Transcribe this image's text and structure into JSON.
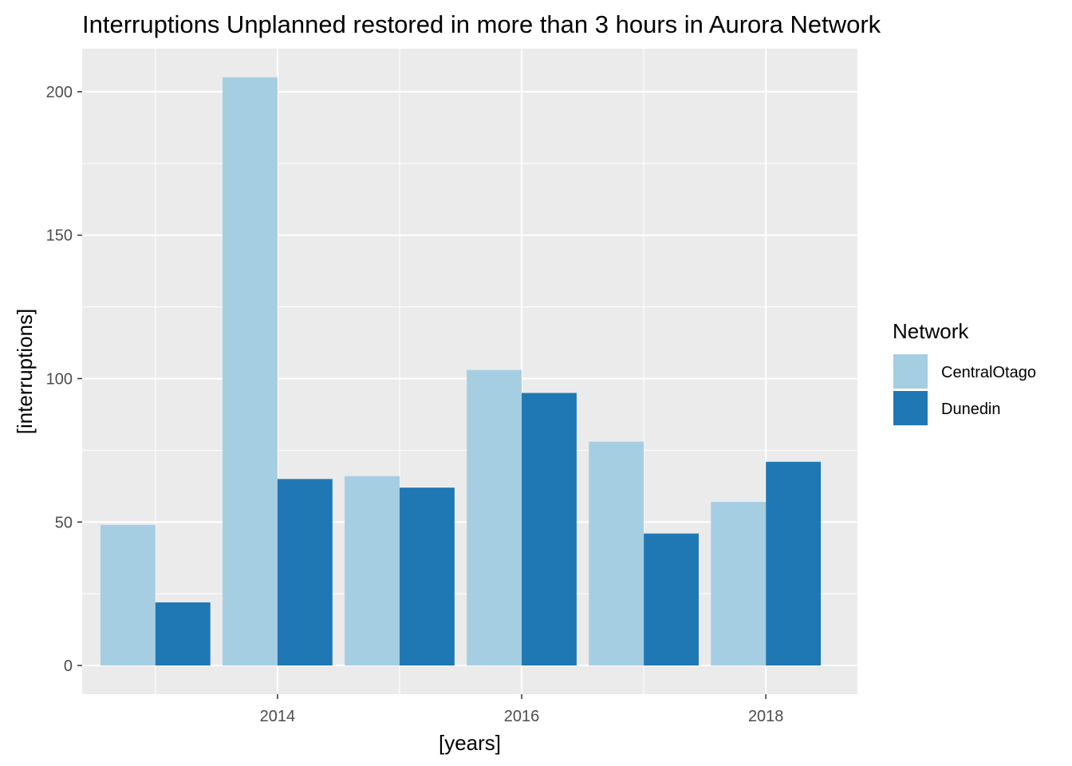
{
  "chart_data": {
    "type": "bar",
    "title": "Interruptions Unplanned restored in more than 3 hours in Aurora Network",
    "xlabel": "[years]",
    "ylabel": "[interruptions]",
    "x": [
      2013,
      2014,
      2015,
      2016,
      2017,
      2018
    ],
    "x_ticks": [
      2014,
      2016,
      2018
    ],
    "x_tick_labels": [
      "2014",
      "2016",
      "2018"
    ],
    "xlim": [
      2012.4,
      2018.75
    ],
    "y_ticks": [
      0,
      50,
      100,
      150,
      200
    ],
    "y_tick_labels": [
      "0",
      "50",
      "100",
      "150",
      "200"
    ],
    "ylim": [
      -10,
      215
    ],
    "grid": true,
    "legend": {
      "title": "Network",
      "placement": "right"
    },
    "series": [
      {
        "name": "CentralOtago",
        "color": "#A6CEE3",
        "values": [
          49,
          205,
          66,
          103,
          78,
          57
        ]
      },
      {
        "name": "Dunedin",
        "color": "#1F78B4",
        "values": [
          22,
          65,
          62,
          95,
          46,
          71
        ]
      }
    ]
  }
}
